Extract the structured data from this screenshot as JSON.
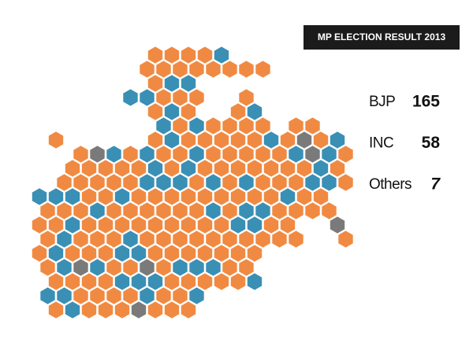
{
  "title": "MP ELECTION RESULT 2013",
  "parties": [
    {
      "name": "BJP",
      "seats": 165,
      "color": "#f08a42"
    },
    {
      "name": "INC",
      "seats": 58,
      "color": "#3a8fb5"
    },
    {
      "name": "Others",
      "seats": 7,
      "color": "#7a7a7a"
    }
  ]
}
